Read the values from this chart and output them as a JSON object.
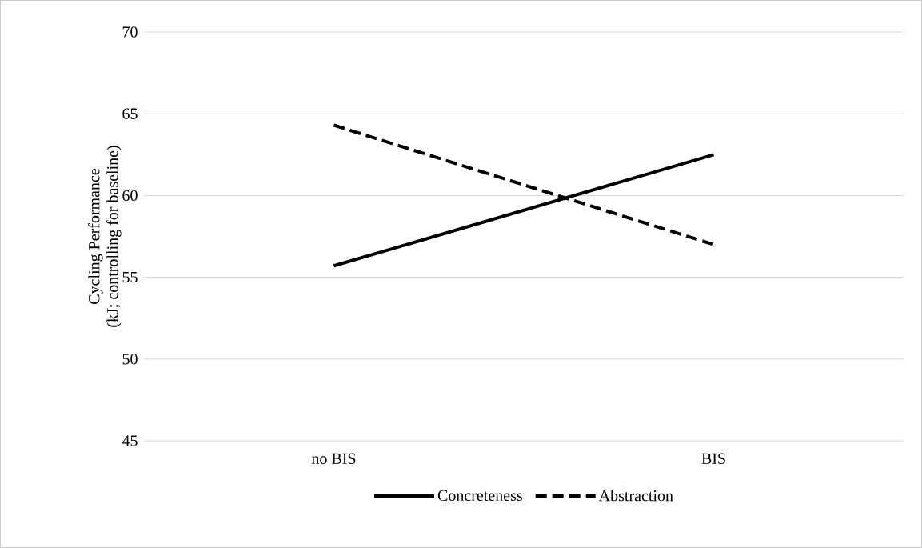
{
  "chart_data": {
    "type": "line",
    "ylabel": "Cycling Performance\n(kJ; controlling for baseline)",
    "categories": [
      "no BIS",
      "BIS"
    ],
    "series": [
      {
        "name": "Concreteness",
        "color": "#000000",
        "line_style": "solid",
        "values": [
          55.7,
          62.5
        ]
      },
      {
        "name": "Abstraction",
        "color": "#000000",
        "line_style": "dashed",
        "values": [
          64.3,
          57.0
        ]
      }
    ],
    "ylim": [
      45,
      70
    ],
    "yticks": [
      45,
      50,
      55,
      60,
      65,
      70
    ],
    "grid": "y",
    "legend": "bottom",
    "marker": "none"
  }
}
